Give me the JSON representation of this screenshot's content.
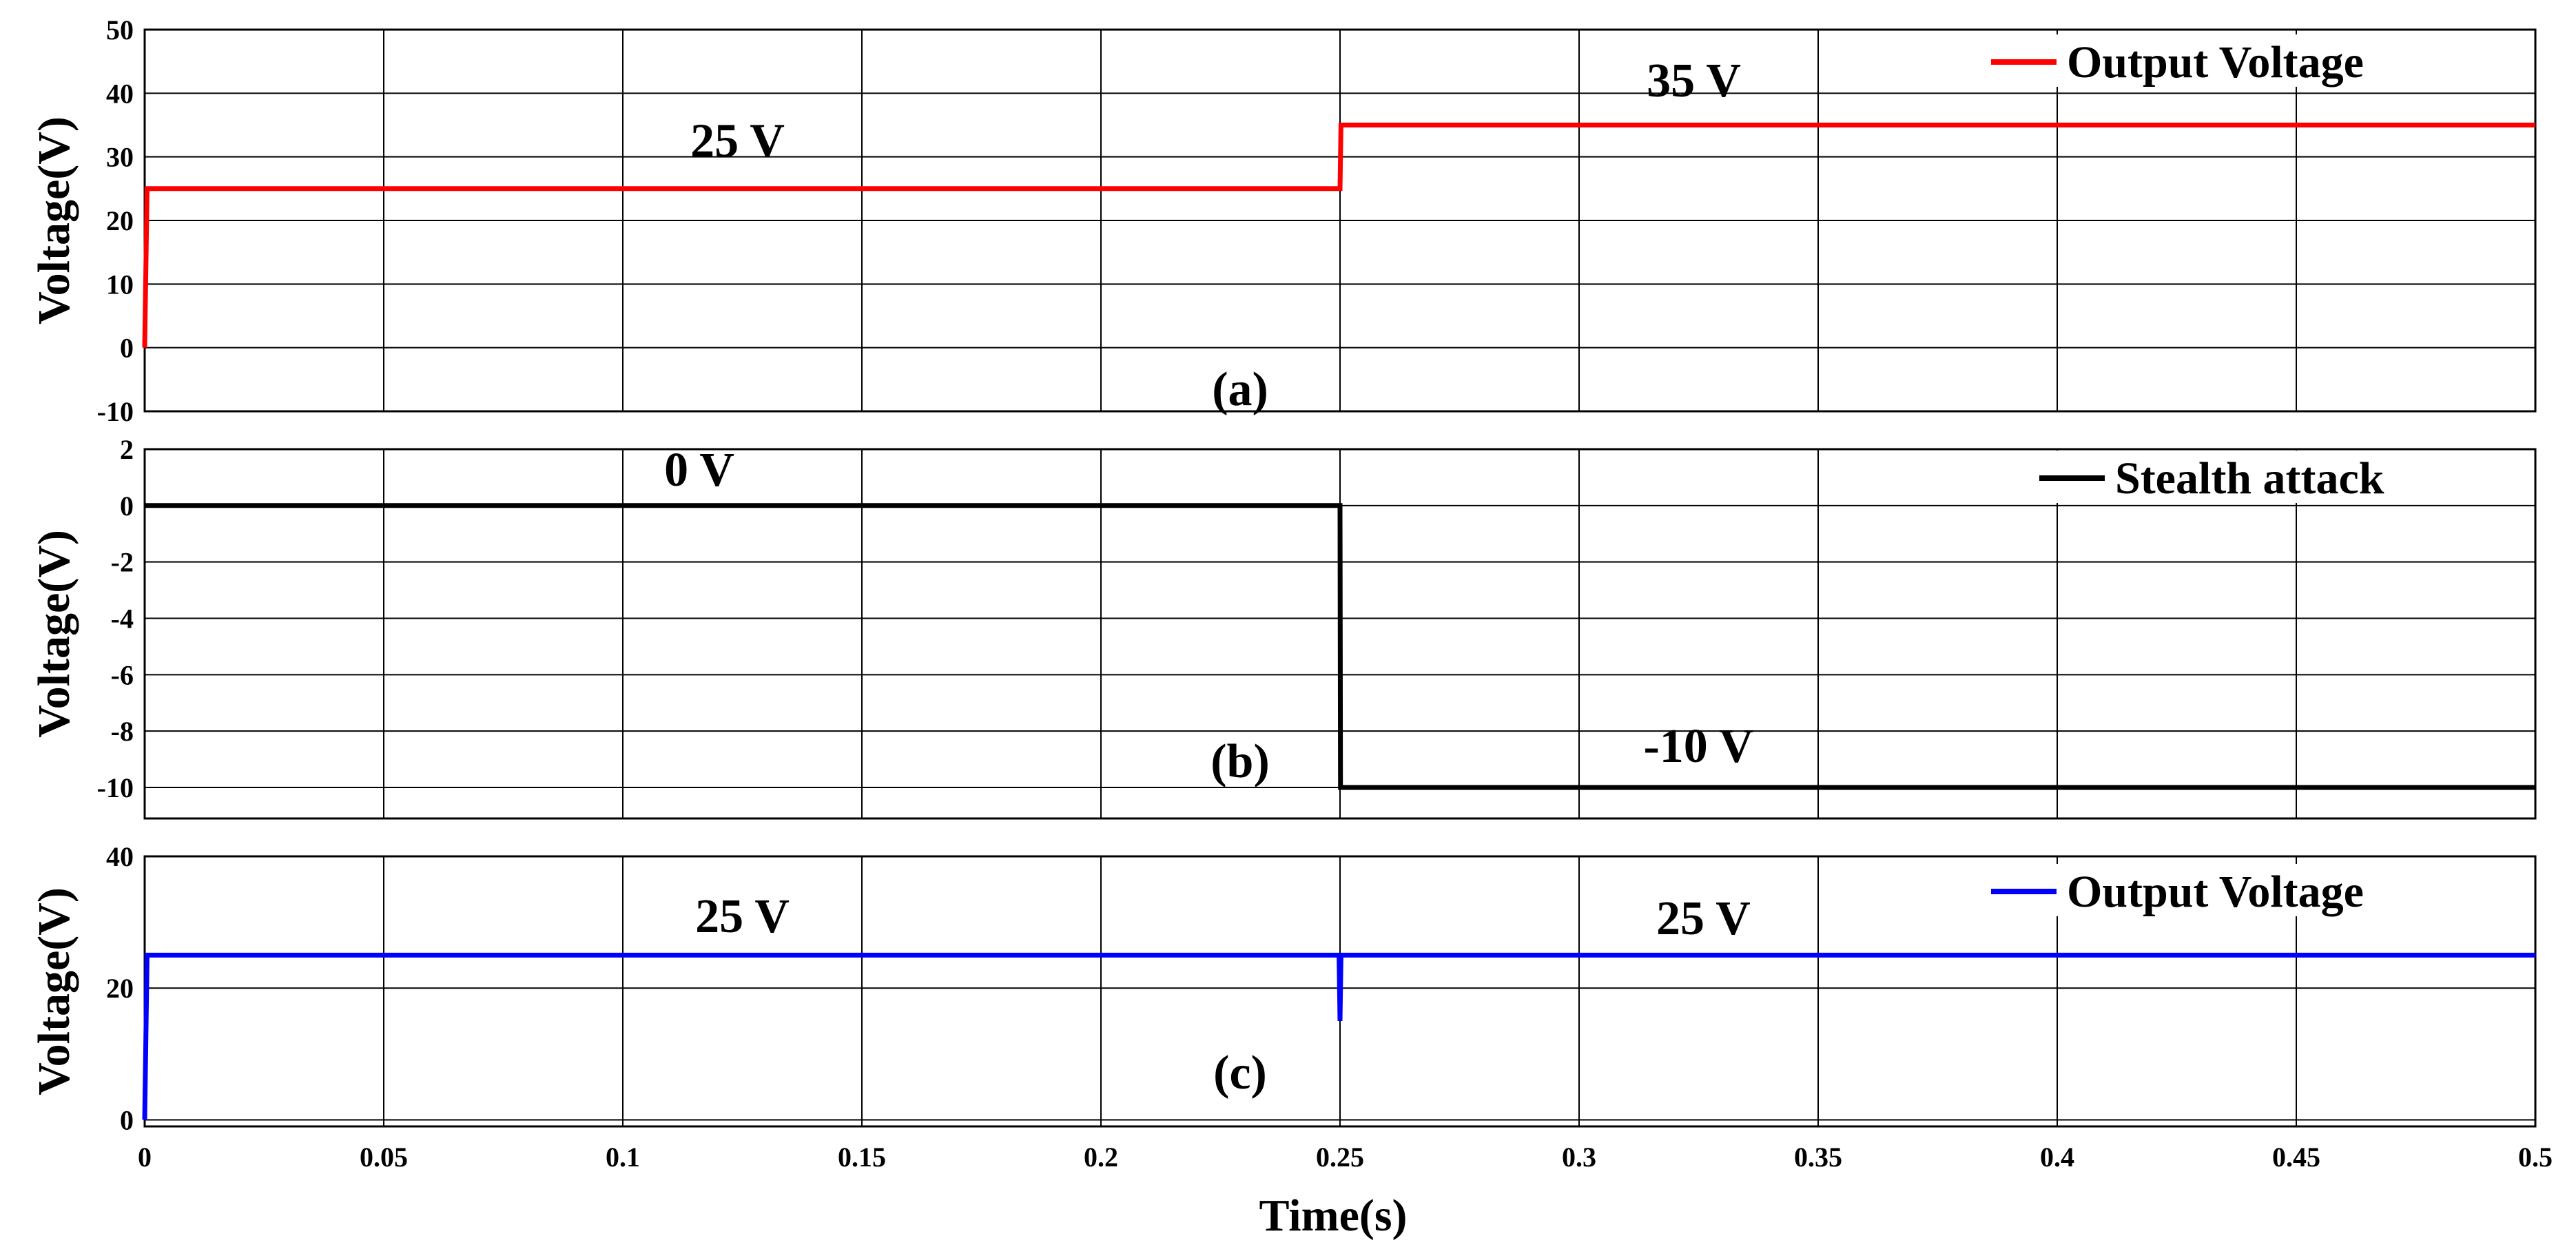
{
  "figure": {
    "xlabel": "Time(s)"
  },
  "chart_data": [
    {
      "type": "line",
      "panel_label": "(a)",
      "ylabel": "Voltage(V)",
      "xlim": [
        0,
        0.5
      ],
      "ylim": [
        -10,
        50
      ],
      "x_ticks": [
        "0",
        "0.05",
        "0.1",
        "0.15",
        "0.2",
        "0.25",
        "0.3",
        "0.35",
        "0.4",
        "0.45",
        "0.5"
      ],
      "y_ticks": [
        "-10",
        "0",
        "10",
        "20",
        "30",
        "40",
        "50"
      ],
      "grid": true,
      "legend_position": "top-right",
      "series": [
        {
          "name": "Output Voltage",
          "color": "#ff0000",
          "points": [
            [
              0,
              0
            ],
            [
              0.0005,
              25
            ],
            [
              0.25,
              25
            ],
            [
              0.2502,
              35
            ],
            [
              0.5,
              35
            ]
          ]
        }
      ],
      "annotations": [
        {
          "text": "25 V",
          "x": 0.124,
          "y": 30
        },
        {
          "text": "35 V",
          "x": 0.324,
          "y": 39.5
        }
      ]
    },
    {
      "type": "line",
      "panel_label": "(b)",
      "ylabel": "Voltage(V)",
      "xlim": [
        0,
        0.5
      ],
      "ylim": [
        -11.1,
        2
      ],
      "x_ticks": [
        "0",
        "0.05",
        "0.1",
        "0.15",
        "0.2",
        "0.25",
        "0.3",
        "0.35",
        "0.4",
        "0.45",
        "0.5"
      ],
      "y_ticks": [
        "2",
        "0",
        "-2",
        "-4",
        "-6",
        "-8",
        "-10"
      ],
      "grid": true,
      "legend_position": "top-right",
      "series": [
        {
          "name": "Stealth attack",
          "color": "#000000",
          "points": [
            [
              0,
              0
            ],
            [
              0.25,
              0
            ],
            [
              0.2501,
              -10
            ],
            [
              0.5,
              -10
            ]
          ]
        }
      ],
      "annotations": [
        {
          "text": "0 V",
          "x": 0.116,
          "y": 0.7
        },
        {
          "text": "-10 V",
          "x": 0.325,
          "y": -9.1
        }
      ]
    },
    {
      "type": "line",
      "panel_label": "(c)",
      "ylabel": "Voltage(V)",
      "xlim": [
        0,
        0.5
      ],
      "ylim": [
        -1,
        40
      ],
      "x_ticks": [
        "0",
        "0.05",
        "0.1",
        "0.15",
        "0.2",
        "0.25",
        "0.3",
        "0.35",
        "0.4",
        "0.45",
        "0.5"
      ],
      "y_ticks": [
        "0",
        "20",
        "40"
      ],
      "grid": true,
      "legend_position": "top-right",
      "series": [
        {
          "name": "Output Voltage",
          "color": "#0000ff",
          "points": [
            [
              0,
              0
            ],
            [
              0.0005,
              25
            ],
            [
              0.2498,
              25
            ],
            [
              0.25,
              15
            ],
            [
              0.2502,
              25
            ],
            [
              0.5,
              25
            ]
          ]
        }
      ],
      "annotations": [
        {
          "text": "25 V",
          "x": 0.125,
          "y": 28.5
        },
        {
          "text": "25 V",
          "x": 0.326,
          "y": 28.2
        }
      ]
    }
  ]
}
